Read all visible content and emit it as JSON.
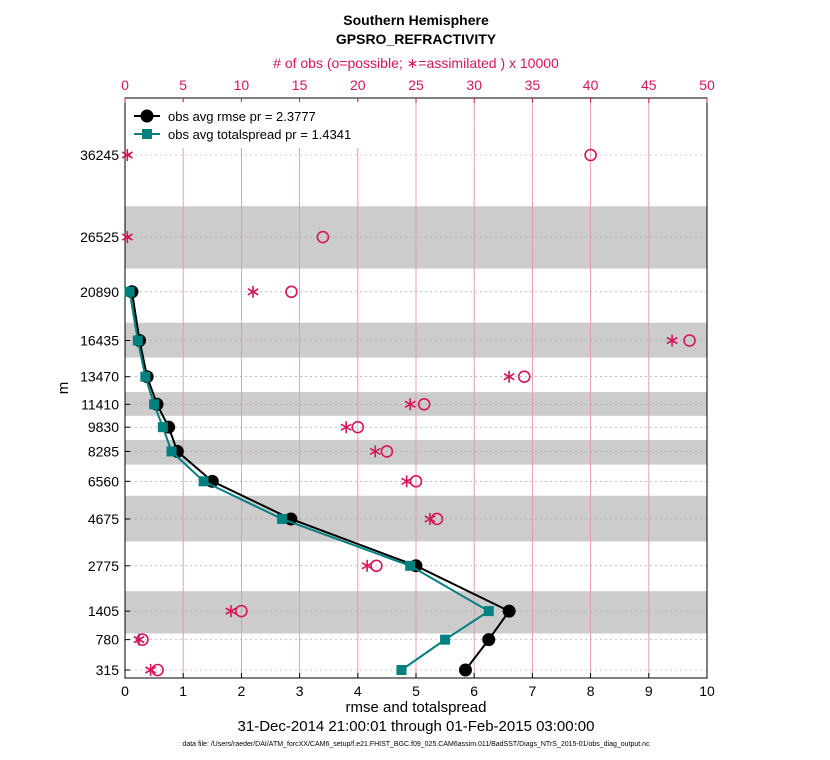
{
  "chart_data": {
    "type": "line",
    "title": "Southern Hemisphere",
    "subtitle": "GPSRO_REFRACTIVITY",
    "top_axis_label": "# of obs (o=possible; ∗=assimilated ) x 10000",
    "xlabel": "rmse and totalspread",
    "ylabel": "m",
    "date_range": "31-Dec-2014 21:00:01 through 01-Feb-2015 03:00:00",
    "footnote": "data file: /Users/raeder/DAI/ATM_forcXX/CAM6_setup/f.e21.FHIST_BGC.f09_025.CAM6assim.011/BadSST/Diags_NTrS_2015-01/obs_diag_output.nc",
    "xlim": [
      0,
      10
    ],
    "xticks": [
      "0",
      "1",
      "2",
      "3",
      "4",
      "5",
      "6",
      "7",
      "8",
      "9",
      "10"
    ],
    "top_xlim": [
      0,
      50
    ],
    "top_xticks": [
      "0",
      "5",
      "10",
      "15",
      "20",
      "25",
      "30",
      "35",
      "40",
      "45",
      "50"
    ],
    "y_levels": [
      "36245",
      "26525",
      "20890",
      "16435",
      "13470",
      "11410",
      "9830",
      "8285",
      "6560",
      "4675",
      "2775",
      "1405",
      "780",
      "315"
    ],
    "level_values": [
      36245,
      26525,
      20890,
      16435,
      13470,
      11410,
      9830,
      8285,
      6560,
      4675,
      2775,
      1405,
      780,
      315
    ],
    "shaded_bands": [
      [
        23200,
        30000
      ],
      [
        15000,
        18000
      ],
      [
        10600,
        12300
      ],
      [
        7500,
        9000
      ],
      [
        3700,
        5800
      ],
      [
        900,
        1950
      ]
    ],
    "series": [
      {
        "name": "obs avg rmse",
        "legend": "obs avg rmse  pr = 2.3777",
        "color": "#000000",
        "marker": "circle",
        "values": [
          null,
          null,
          0.12,
          0.25,
          0.38,
          0.55,
          0.75,
          0.9,
          1.5,
          2.85,
          5.0,
          6.6,
          6.25,
          5.85
        ]
      },
      {
        "name": "obs avg totalspread",
        "legend": "obs avg totalspread  pr = 1.4341",
        "color": "#00807f",
        "marker": "square",
        "values": [
          null,
          null,
          0.08,
          0.22,
          0.35,
          0.5,
          0.65,
          0.8,
          1.35,
          2.7,
          4.9,
          6.25,
          5.5,
          4.75
        ]
      }
    ],
    "obs_possible": [
      40.0,
      17.0,
      14.3,
      48.5,
      34.3,
      25.7,
      20.0,
      22.5,
      25.0,
      26.8,
      21.6,
      10.0,
      1.5,
      2.8
    ],
    "obs_assimilated": [
      0.2,
      0.2,
      11.0,
      47.0,
      33.0,
      24.5,
      19.0,
      21.5,
      24.2,
      26.2,
      20.8,
      9.1,
      1.2,
      2.2
    ]
  }
}
